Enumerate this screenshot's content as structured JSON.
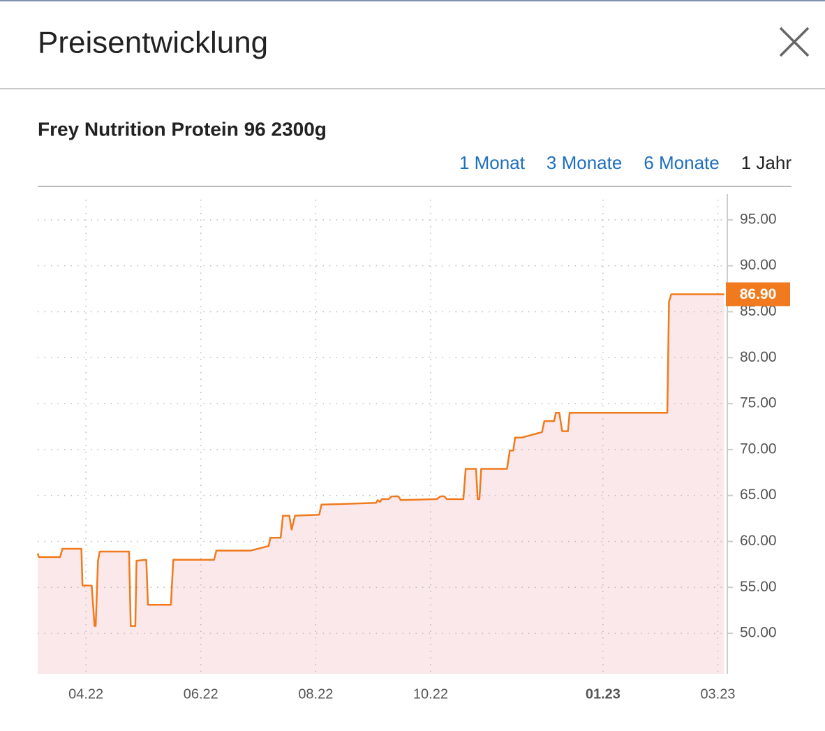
{
  "header": {
    "title": "Preisentwicklung"
  },
  "product": "Frey Nutrition Protein 96 2300g",
  "ranges": [
    {
      "label": "1 Monat",
      "active": false
    },
    {
      "label": "3 Monate",
      "active": false
    },
    {
      "label": "6 Monate",
      "active": false
    },
    {
      "label": "1 Jahr",
      "active": true
    }
  ],
  "chart_data": {
    "type": "line",
    "area": true,
    "color": "#f07a1d",
    "fill": "#fbe8ea",
    "grid": true,
    "x": [
      3.16,
      3.18,
      3.55,
      3.59,
      3.92,
      3.94,
      4.1,
      4.15,
      4.17,
      4.21,
      4.24,
      4.75,
      4.78,
      4.86,
      4.88,
      5.05,
      5.08,
      5.48,
      5.52,
      6.23,
      6.27,
      6.87,
      7.18,
      7.21,
      7.39,
      7.43,
      7.54,
      7.58,
      7.64,
      8.06,
      8.1,
      9.05,
      9.08,
      9.12,
      9.15,
      9.27,
      9.32,
      9.44,
      9.48,
      10.11,
      10.17,
      10.24,
      10.28,
      10.57,
      10.61,
      10.79,
      10.82,
      10.85,
      10.88,
      11.33,
      11.38,
      11.44,
      11.47,
      11.58,
      11.94,
      11.98,
      12.15,
      12.18,
      12.24,
      12.29,
      12.39,
      12.42,
      14.12,
      14.15,
      14.19,
      15.11
    ],
    "values": [
      58.7,
      58.3,
      58.3,
      59.2,
      59.2,
      55.2,
      55.2,
      50.8,
      50.8,
      57.9,
      58.9,
      58.9,
      50.8,
      50.8,
      57.9,
      58.0,
      53.1,
      53.1,
      58.0,
      58.0,
      59.0,
      59.0,
      59.5,
      60.4,
      60.4,
      62.8,
      62.8,
      61.3,
      62.8,
      62.9,
      64.0,
      64.2,
      64.5,
      64.3,
      64.6,
      64.6,
      64.9,
      64.9,
      64.5,
      64.6,
      64.9,
      64.9,
      64.6,
      64.6,
      67.9,
      67.9,
      64.6,
      64.6,
      67.9,
      67.9,
      69.9,
      69.9,
      71.3,
      71.3,
      71.9,
      73.1,
      73.1,
      74.0,
      74.0,
      72.0,
      72.0,
      74.0,
      74.0,
      86.1,
      86.9,
      86.9
    ],
    "xlim": [
      3.16,
      15.14
    ],
    "xticks": [
      {
        "value": 4,
        "label": "04.22"
      },
      {
        "value": 6,
        "label": "06.22"
      },
      {
        "value": 8,
        "label": "08.22"
      },
      {
        "value": 10,
        "label": "10.22"
      },
      {
        "value": 13,
        "label": "01.23",
        "bold": true
      },
      {
        "value": 15,
        "label": "03.23"
      }
    ],
    "ylim": [
      45.6,
      97.8
    ],
    "yticks": [
      {
        "value": 50,
        "label": "50.00"
      },
      {
        "value": 55,
        "label": "55.00"
      },
      {
        "value": 60,
        "label": "60.00"
      },
      {
        "value": 65,
        "label": "65.00"
      },
      {
        "value": 70,
        "label": "70.00"
      },
      {
        "value": 75,
        "label": "75.00"
      },
      {
        "value": 80,
        "label": "80.00"
      },
      {
        "value": 85,
        "label": "85.00"
      },
      {
        "value": 90,
        "label": "90.00"
      },
      {
        "value": 95,
        "label": "95.00"
      }
    ],
    "annotation": {
      "value": 86.9,
      "label": "86.90"
    }
  }
}
